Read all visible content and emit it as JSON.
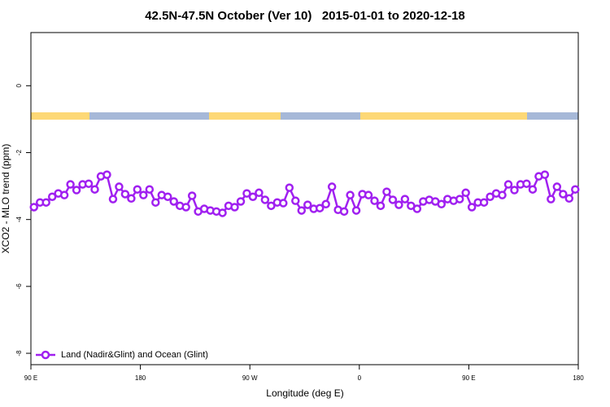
{
  "chart_data": {
    "type": "line",
    "title": "42.5N-47.5N October (Ver 10)   2015-01-01 to 2020-12-18",
    "xlabel": "Longitude (deg E)",
    "ylabel": "XCO2 - MLO trend (ppm)",
    "xlim": [
      90,
      540
    ],
    "xticks": [
      {
        "value": 90,
        "label": "90 E"
      },
      180,
      {
        "value": 270,
        "label": "90 W"
      },
      {
        "value": 360,
        "label": "0"
      },
      {
        "value": 450,
        "label": "90 E"
      },
      {
        "value": 540,
        "label": "180"
      }
    ],
    "ylim": [
      -8.34,
      1.59
    ],
    "yticks": [
      0,
      -2,
      -4,
      -6,
      -8
    ],
    "legend": "bottom left",
    "x": [
      92.5,
      97.5,
      102.5,
      107.5,
      112.5,
      117.5,
      122.5,
      127.5,
      132.5,
      137.5,
      142.5,
      147.5,
      152.5,
      157.5,
      162.5,
      167.5,
      172.5,
      177.5,
      182.5,
      187.5,
      192.5,
      197.5,
      202.5,
      207.5,
      212.5,
      217.5,
      222.5,
      227.5,
      232.5,
      237.5,
      242.5,
      247.5,
      252.5,
      257.5,
      262.5,
      267.5,
      272.5,
      277.5,
      282.5,
      287.5,
      292.5,
      297.5,
      302.5,
      307.5,
      312.5,
      317.5,
      322.5,
      327.5,
      332.5,
      337.5,
      342.5,
      347.5,
      352.5,
      357.5,
      362.5,
      367.5,
      372.5,
      377.5,
      382.5,
      387.5,
      392.5,
      397.5,
      402.5,
      407.5,
      412.5,
      417.5,
      422.5,
      427.5,
      432.5,
      437.5,
      442.5,
      447.5,
      452.5,
      457.5,
      462.5,
      467.5,
      472.5,
      477.5,
      482.5,
      487.5,
      492.5,
      497.5,
      502.5,
      507.5,
      512.5,
      517.5,
      522.5,
      527.5,
      532.5,
      537.5
    ],
    "series": [
      {
        "name": "Land (Nadir&Glint) and Ocean (Glint)",
        "color": "#a020f0",
        "values": [
          -3.63,
          -3.49,
          -3.49,
          -3.32,
          -3.22,
          -3.27,
          -2.95,
          -3.12,
          -2.95,
          -2.93,
          -3.1,
          -2.71,
          -2.66,
          -3.39,
          -3.02,
          -3.24,
          -3.37,
          -3.1,
          -3.27,
          -3.1,
          -3.49,
          -3.27,
          -3.32,
          -3.46,
          -3.59,
          -3.63,
          -3.29,
          -3.76,
          -3.68,
          -3.73,
          -3.76,
          -3.8,
          -3.59,
          -3.63,
          -3.46,
          -3.22,
          -3.32,
          -3.2,
          -3.41,
          -3.59,
          -3.49,
          -3.51,
          -3.05,
          -3.44,
          -3.73,
          -3.56,
          -3.68,
          -3.66,
          -3.54,
          -3.02,
          -3.71,
          -3.76,
          -3.27,
          -3.73,
          -3.24,
          -3.27,
          -3.44,
          -3.59,
          -3.17,
          -3.41,
          -3.56,
          -3.39,
          -3.59,
          -3.68,
          -3.46,
          -3.41,
          -3.46,
          -3.54,
          -3.39,
          -3.44,
          -3.39,
          -3.2,
          -3.63,
          -3.49,
          -3.49,
          -3.32,
          -3.22,
          -3.27,
          -2.95,
          -3.12,
          -2.95,
          -2.93,
          -3.1,
          -2.71,
          -2.66,
          -3.39,
          -3.02,
          -3.24,
          -3.37,
          -3.1
        ]
      }
    ]
  }
}
